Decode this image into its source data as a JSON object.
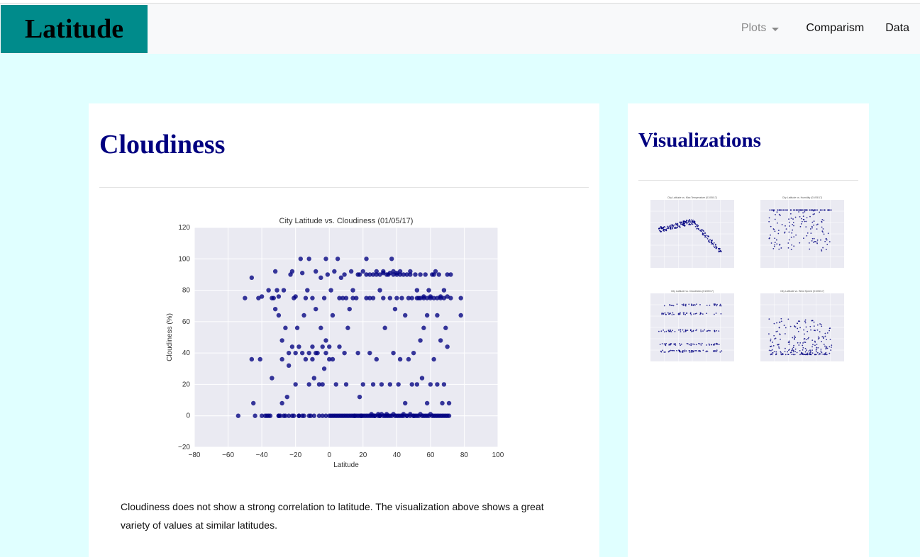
{
  "navbar": {
    "brand": "Latitude",
    "dropdown_label": "Plots",
    "links": [
      "Comparism",
      "Data"
    ]
  },
  "main": {
    "title": "Cloudiness",
    "description": "Cloudiness does not show a strong correlation to latitude. The visualization above shows a great variety of values at similar latitudes."
  },
  "sidebar": {
    "title": "Visualizations",
    "thumbnails": [
      {
        "title": "City Latitude vs. Max Temperature (01/05/17)",
        "ylabel": "Max Temperature (F)"
      },
      {
        "title": "City Latitude vs. Humidity (01/05/17)",
        "ylabel": "Humidity (%)"
      },
      {
        "title": "City Latitude vs. Cloudiness (01/05/17)",
        "ylabel": "Cloudiness (%)"
      },
      {
        "title": "City Latitude vs. Wind Speed (01/05/17)",
        "ylabel": "Wind Speed (mph)"
      }
    ]
  },
  "colors": {
    "page_bg": "#e0ffff",
    "brand_bg": "#008b8b",
    "heading": "#000080",
    "plot_bg": "#eaeaf2",
    "marker": "#000080"
  },
  "chart_data": {
    "type": "scatter",
    "title": "City Latitude vs. Cloudiness (01/05/17)",
    "xlabel": "Latitude",
    "ylabel": "Cloudiness (%)",
    "xlim": [
      -80,
      100
    ],
    "ylim": [
      -20,
      120
    ],
    "xticks": [
      -80,
      -60,
      -40,
      -20,
      0,
      20,
      40,
      60,
      80,
      100
    ],
    "yticks": [
      -20,
      0,
      20,
      40,
      60,
      80,
      100,
      120
    ],
    "grid": true,
    "series": [
      {
        "points": [
          [
            -54,
            0
          ],
          [
            -50,
            75
          ],
          [
            -46,
            36
          ],
          [
            -46,
            88
          ],
          [
            -45,
            8
          ],
          [
            -44,
            0
          ],
          [
            -42,
            75
          ],
          [
            -41,
            36
          ],
          [
            -40,
            0
          ],
          [
            -38,
            0
          ],
          [
            -37,
            0
          ],
          [
            -36,
            0
          ],
          [
            -35,
            0
          ],
          [
            -34,
            24
          ],
          [
            -33,
            75
          ],
          [
            -32,
            68
          ],
          [
            -32,
            92
          ],
          [
            -31,
            80
          ],
          [
            -30,
            0
          ],
          [
            -30,
            64
          ],
          [
            -29,
            0
          ],
          [
            -28,
            36
          ],
          [
            -28,
            8
          ],
          [
            -27,
            80
          ],
          [
            -26,
            0
          ],
          [
            -25,
            12
          ],
          [
            -24,
            32
          ],
          [
            -23,
            90
          ],
          [
            -22,
            92
          ],
          [
            -22,
            0
          ],
          [
            -21,
            75
          ],
          [
            -20,
            40
          ],
          [
            -20,
            20
          ],
          [
            -19,
            56
          ],
          [
            -18,
            0
          ],
          [
            -17,
            100
          ],
          [
            -16,
            91
          ],
          [
            -15,
            0
          ],
          [
            -15,
            64
          ],
          [
            -14,
            36
          ],
          [
            -13,
            80
          ],
          [
            -12,
            100
          ],
          [
            -12,
            20
          ],
          [
            -11,
            0
          ],
          [
            -10,
            44
          ],
          [
            -10,
            75
          ],
          [
            -9,
            24
          ],
          [
            -8,
            68
          ],
          [
            -8,
            92
          ],
          [
            -7,
            40
          ],
          [
            -6,
            0
          ],
          [
            -5,
            56
          ],
          [
            -5,
            88
          ],
          [
            -4,
            20
          ],
          [
            -3,
            30
          ],
          [
            -3,
            75
          ],
          [
            -2,
            100
          ],
          [
            -2,
            48
          ],
          [
            -1,
            90
          ],
          [
            0,
            0
          ],
          [
            0,
            36
          ],
          [
            1,
            80
          ],
          [
            2,
            0
          ],
          [
            2,
            64
          ],
          [
            3,
            92
          ],
          [
            4,
            0
          ],
          [
            4,
            20
          ],
          [
            5,
            100
          ],
          [
            6,
            0
          ],
          [
            6,
            44
          ],
          [
            7,
            88
          ],
          [
            8,
            0
          ],
          [
            8,
            75
          ],
          [
            9,
            40
          ],
          [
            9,
            90
          ],
          [
            10,
            0
          ],
          [
            10,
            20
          ],
          [
            11,
            56
          ],
          [
            12,
            0
          ],
          [
            12,
            68
          ],
          [
            13,
            92
          ],
          [
            14,
            0
          ],
          [
            14,
            80
          ],
          [
            15,
            0
          ],
          [
            16,
            75
          ],
          [
            17,
            40
          ],
          [
            17,
            90
          ],
          [
            18,
            0
          ],
          [
            18,
            12
          ],
          [
            19,
            0
          ],
          [
            20,
            92
          ],
          [
            20,
            20
          ],
          [
            21,
            0
          ],
          [
            22,
            100
          ],
          [
            22,
            75
          ],
          [
            23,
            0
          ],
          [
            24,
            40
          ],
          [
            24,
            90
          ],
          [
            25,
            0
          ],
          [
            26,
            75
          ],
          [
            26,
            20
          ],
          [
            27,
            0
          ],
          [
            28,
            36
          ],
          [
            28,
            90
          ],
          [
            29,
            0
          ],
          [
            30,
            80
          ],
          [
            30,
            0
          ],
          [
            31,
            20
          ],
          [
            32,
            75
          ],
          [
            32,
            92
          ],
          [
            33,
            0
          ],
          [
            33,
            56
          ],
          [
            34,
            1
          ],
          [
            35,
            90
          ],
          [
            35,
            0
          ],
          [
            36,
            75
          ],
          [
            36,
            20
          ],
          [
            37,
            100
          ],
          [
            37,
            0
          ],
          [
            38,
            40
          ],
          [
            38,
            92
          ],
          [
            39,
            0
          ],
          [
            39,
            68
          ],
          [
            40,
            75
          ],
          [
            40,
            90
          ],
          [
            41,
            0
          ],
          [
            41,
            20
          ],
          [
            42,
            36
          ],
          [
            42,
            90
          ],
          [
            43,
            0
          ],
          [
            43,
            75
          ],
          [
            44,
            0
          ],
          [
            45,
            8
          ],
          [
            45,
            64
          ],
          [
            46,
            90
          ],
          [
            46,
            0
          ],
          [
            47,
            75
          ],
          [
            47,
            36
          ],
          [
            48,
            0
          ],
          [
            48,
            92
          ],
          [
            49,
            20
          ],
          [
            49,
            75
          ],
          [
            50,
            0
          ],
          [
            50,
            40
          ],
          [
            51,
            90
          ],
          [
            51,
            0
          ],
          [
            52,
            80
          ],
          [
            52,
            20
          ],
          [
            53,
            0
          ],
          [
            53,
            75
          ],
          [
            54,
            48
          ],
          [
            54,
            90
          ],
          [
            55,
            0
          ],
          [
            55,
            24
          ],
          [
            56,
            75
          ],
          [
            56,
            56
          ],
          [
            57,
            0
          ],
          [
            57,
            90
          ],
          [
            58,
            8
          ],
          [
            58,
            64
          ],
          [
            59,
            0
          ],
          [
            59,
            80
          ],
          [
            60,
            75
          ],
          [
            60,
            20
          ],
          [
            61,
            0
          ],
          [
            61,
            90
          ],
          [
            62,
            36
          ],
          [
            62,
            75
          ],
          [
            63,
            0
          ],
          [
            63,
            92
          ],
          [
            64,
            20
          ],
          [
            64,
            64
          ],
          [
            65,
            0
          ],
          [
            65,
            90
          ],
          [
            66,
            48
          ],
          [
            66,
            75
          ],
          [
            67,
            0
          ],
          [
            67,
            8
          ],
          [
            68,
            80
          ],
          [
            68,
            20
          ],
          [
            69,
            0
          ],
          [
            69,
            56
          ],
          [
            70,
            90
          ],
          [
            70,
            44
          ],
          [
            71,
            0
          ],
          [
            71,
            8
          ],
          [
            72,
            75
          ],
          [
            72,
            90
          ],
          [
            78,
            64
          ],
          [
            78,
            75
          ],
          [
            -40,
            76
          ],
          [
            -36,
            80
          ],
          [
            -34,
            75
          ],
          [
            -30,
            76
          ],
          [
            -28,
            48
          ],
          [
            -26,
            56
          ],
          [
            -24,
            40
          ],
          [
            -22,
            44
          ],
          [
            -20,
            76
          ],
          [
            -18,
            44
          ],
          [
            -16,
            40
          ],
          [
            -14,
            75
          ],
          [
            -12,
            40
          ],
          [
            -10,
            36
          ],
          [
            -8,
            40
          ],
          [
            -6,
            20
          ],
          [
            -4,
            44
          ],
          [
            -2,
            40
          ],
          [
            0,
            44
          ],
          [
            2,
            36
          ],
          [
            6,
            75
          ],
          [
            10,
            75
          ],
          [
            14,
            75
          ],
          [
            18,
            90
          ],
          [
            22,
            90
          ],
          [
            24,
            75
          ],
          [
            26,
            90
          ],
          [
            28,
            92
          ],
          [
            30,
            90
          ],
          [
            32,
            91
          ],
          [
            34,
            90
          ],
          [
            36,
            91
          ],
          [
            38,
            90
          ],
          [
            40,
            91
          ],
          [
            42,
            92
          ],
          [
            44,
            90
          ],
          [
            48,
            90
          ],
          [
            52,
            75
          ],
          [
            54,
            75
          ],
          [
            56,
            76
          ],
          [
            58,
            75
          ],
          [
            60,
            76
          ],
          [
            62,
            90
          ],
          [
            64,
            75
          ],
          [
            66,
            76
          ],
          [
            68,
            75
          ],
          [
            70,
            76
          ],
          [
            -30,
            0
          ],
          [
            -27,
            0
          ],
          [
            -24,
            0
          ],
          [
            -21,
            0
          ],
          [
            -18,
            0
          ],
          [
            -16,
            0
          ],
          [
            -12,
            0
          ],
          [
            -9,
            0
          ],
          [
            -4,
            0
          ],
          [
            -2,
            0
          ],
          [
            1,
            0
          ],
          [
            3,
            0
          ],
          [
            5,
            0
          ],
          [
            7,
            0
          ],
          [
            9,
            0
          ],
          [
            11,
            0
          ],
          [
            13,
            0
          ],
          [
            15,
            0
          ],
          [
            16,
            0
          ],
          [
            17,
            0
          ],
          [
            19,
            0
          ],
          [
            20,
            0
          ],
          [
            22,
            0
          ],
          [
            24,
            0
          ],
          [
            25,
            1
          ],
          [
            26,
            0
          ],
          [
            27,
            0
          ],
          [
            29,
            1
          ],
          [
            30,
            0
          ],
          [
            31,
            1
          ],
          [
            32,
            0
          ],
          [
            34,
            0
          ],
          [
            36,
            0
          ],
          [
            38,
            1
          ],
          [
            40,
            0
          ],
          [
            42,
            0
          ],
          [
            44,
            1
          ],
          [
            46,
            0
          ],
          [
            48,
            1
          ],
          [
            50,
            0
          ],
          [
            52,
            0
          ],
          [
            54,
            1
          ],
          [
            56,
            0
          ],
          [
            58,
            0
          ],
          [
            60,
            1
          ],
          [
            62,
            0
          ],
          [
            64,
            0
          ],
          [
            66,
            0
          ],
          [
            68,
            0
          ],
          [
            70,
            0
          ]
        ]
      }
    ]
  }
}
